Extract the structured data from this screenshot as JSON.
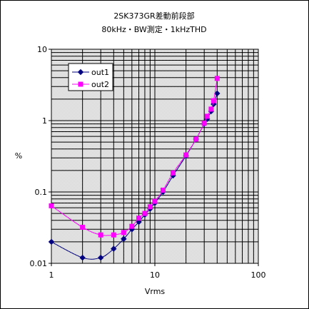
{
  "chart_data": {
    "type": "line",
    "title": "2SK373GR差動前段部",
    "subtitle": "80kHz・BW測定・1kHzTHD",
    "xlabel": "Vrms",
    "ylabel": "%",
    "x_scale": "log",
    "y_scale": "log",
    "xlim": [
      1,
      100
    ],
    "ylim": [
      0.01,
      10
    ],
    "x_ticks": [
      1,
      10,
      100
    ],
    "x_tick_labels": [
      "1",
      "10",
      "100"
    ],
    "y_ticks": [
      0.01,
      0.1,
      1,
      10
    ],
    "y_tick_labels": [
      "0.01",
      "0.1",
      "1",
      "10"
    ],
    "grid": true,
    "legend_position": "top-left",
    "series": [
      {
        "name": "out1",
        "color": "#000080",
        "marker": "diamond",
        "x": [
          1,
          2,
          3,
          4,
          5,
          6,
          7,
          8,
          9,
          10,
          12,
          15,
          20,
          25,
          30,
          32,
          35,
          37,
          40
        ],
        "y": [
          0.02,
          0.012,
          0.012,
          0.016,
          0.022,
          0.03,
          0.038,
          0.048,
          0.058,
          0.07,
          0.1,
          0.17,
          0.32,
          0.55,
          0.9,
          1.05,
          1.35,
          1.7,
          2.4
        ]
      },
      {
        "name": "out2",
        "color": "#ff00ff",
        "marker": "square",
        "x": [
          1,
          2,
          3,
          4,
          5,
          6,
          7,
          8,
          9,
          10,
          12,
          15,
          20,
          25,
          30,
          32,
          35,
          37,
          40
        ],
        "y": [
          0.064,
          0.032,
          0.025,
          0.025,
          0.027,
          0.033,
          0.043,
          0.05,
          0.062,
          0.074,
          0.106,
          0.185,
          0.33,
          0.55,
          0.92,
          1.15,
          1.45,
          1.9,
          3.9
        ]
      }
    ]
  }
}
